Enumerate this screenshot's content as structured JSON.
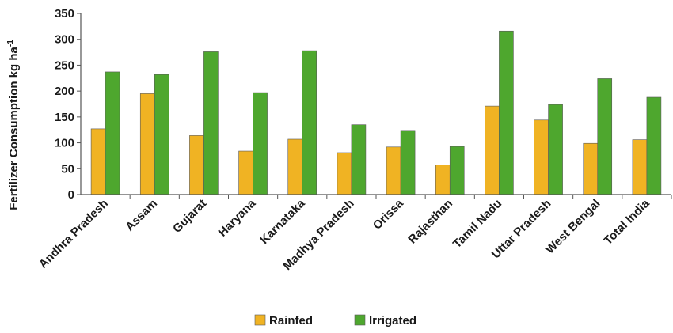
{
  "chart_data": {
    "type": "bar",
    "title": "",
    "xlabel": "",
    "ylabel": "Fertilizer Consumption kg ha",
    "ylabel_superscript": "-1",
    "ylim": [
      0,
      350
    ],
    "yticks": [
      0,
      50,
      100,
      150,
      200,
      250,
      300,
      350
    ],
    "grid": false,
    "legend_position": "bottom",
    "categories": [
      "Andhra Pradesh",
      "Assam",
      "Gujarat",
      "Haryana",
      "Karnataka",
      "Madhya Pradesh",
      "Orissa",
      "Rajasthan",
      "Tamil Nadu",
      "Uttar Pradesh",
      "West Bengal",
      "Total India"
    ],
    "series": [
      {
        "name": "Rainfed",
        "color": "#f0b323",
        "values": [
          127,
          195,
          114,
          84,
          107,
          81,
          92,
          57,
          171,
          144,
          99,
          106
        ]
      },
      {
        "name": "Irrigated",
        "color": "#4ea72e",
        "values": [
          237,
          232,
          276,
          197,
          278,
          135,
          124,
          93,
          316,
          174,
          224,
          188
        ]
      }
    ]
  }
}
